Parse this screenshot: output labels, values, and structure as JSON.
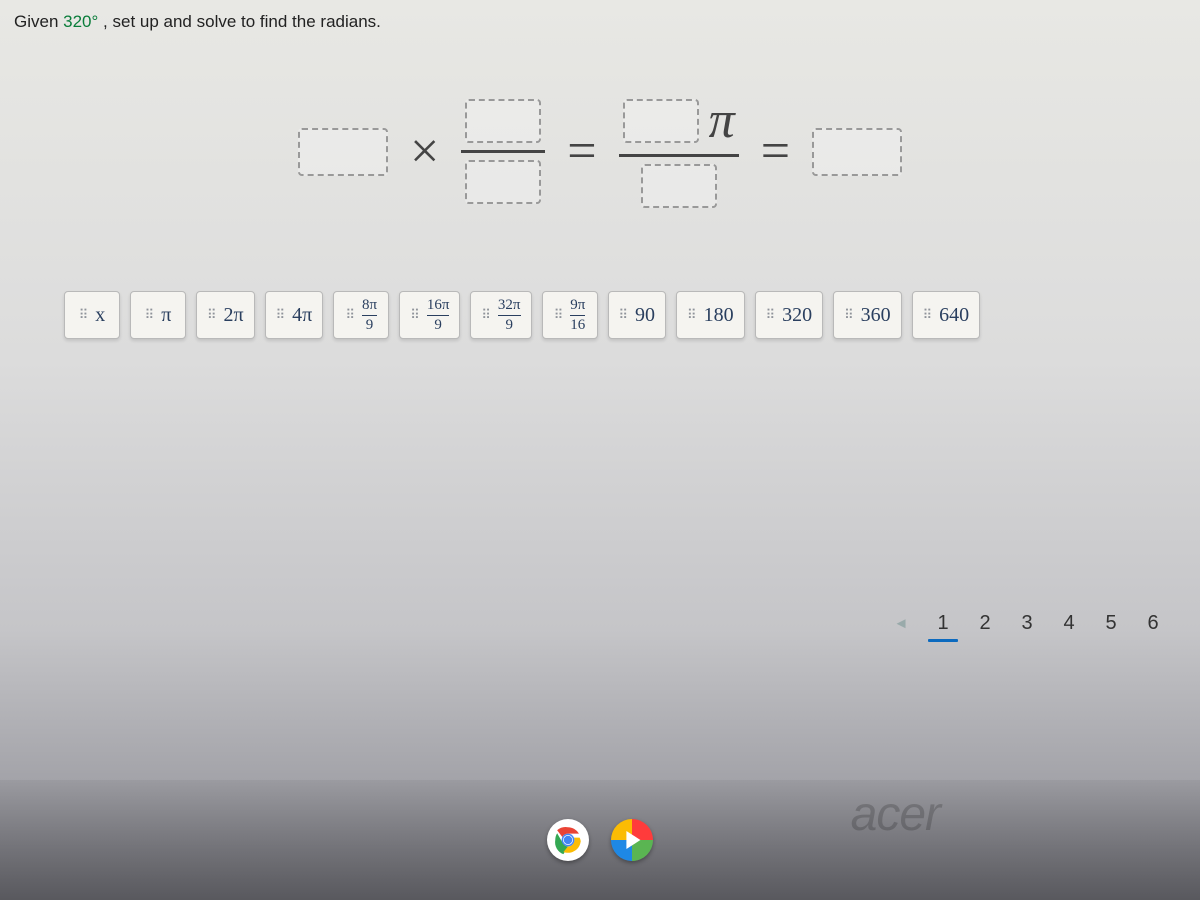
{
  "question": {
    "prefix": "Given ",
    "degrees": "320°",
    "suffix": ", set up and solve to find the radians."
  },
  "equation": {
    "times_symbol": "×",
    "equals_symbol": "=",
    "pi_symbol": "π"
  },
  "tiles": [
    {
      "kind": "plain",
      "label": "x"
    },
    {
      "kind": "plain",
      "label": "π"
    },
    {
      "kind": "plain",
      "label": "2π"
    },
    {
      "kind": "plain",
      "label": "4π"
    },
    {
      "kind": "frac",
      "num": "8π",
      "den": "9"
    },
    {
      "kind": "frac",
      "num": "16π",
      "den": "9"
    },
    {
      "kind": "frac",
      "num": "32π",
      "den": "9"
    },
    {
      "kind": "frac",
      "num": "9π",
      "den": "16"
    },
    {
      "kind": "plain",
      "label": "90"
    },
    {
      "kind": "plain",
      "label": "180"
    },
    {
      "kind": "plain",
      "label": "320"
    },
    {
      "kind": "plain",
      "label": "360"
    },
    {
      "kind": "plain",
      "label": "640"
    }
  ],
  "pager": {
    "prev_symbol": "◄",
    "pages": [
      "1",
      "2",
      "3",
      "4",
      "5",
      "6"
    ],
    "active": 0
  },
  "brand": "acer",
  "colors": {
    "degree_text": "#0a7d3a",
    "tile_bg": "#f5f4f0",
    "tile_border": "#b9b9b9",
    "tile_text": "#2a3f5f",
    "pager_active": "#0c6abf"
  }
}
